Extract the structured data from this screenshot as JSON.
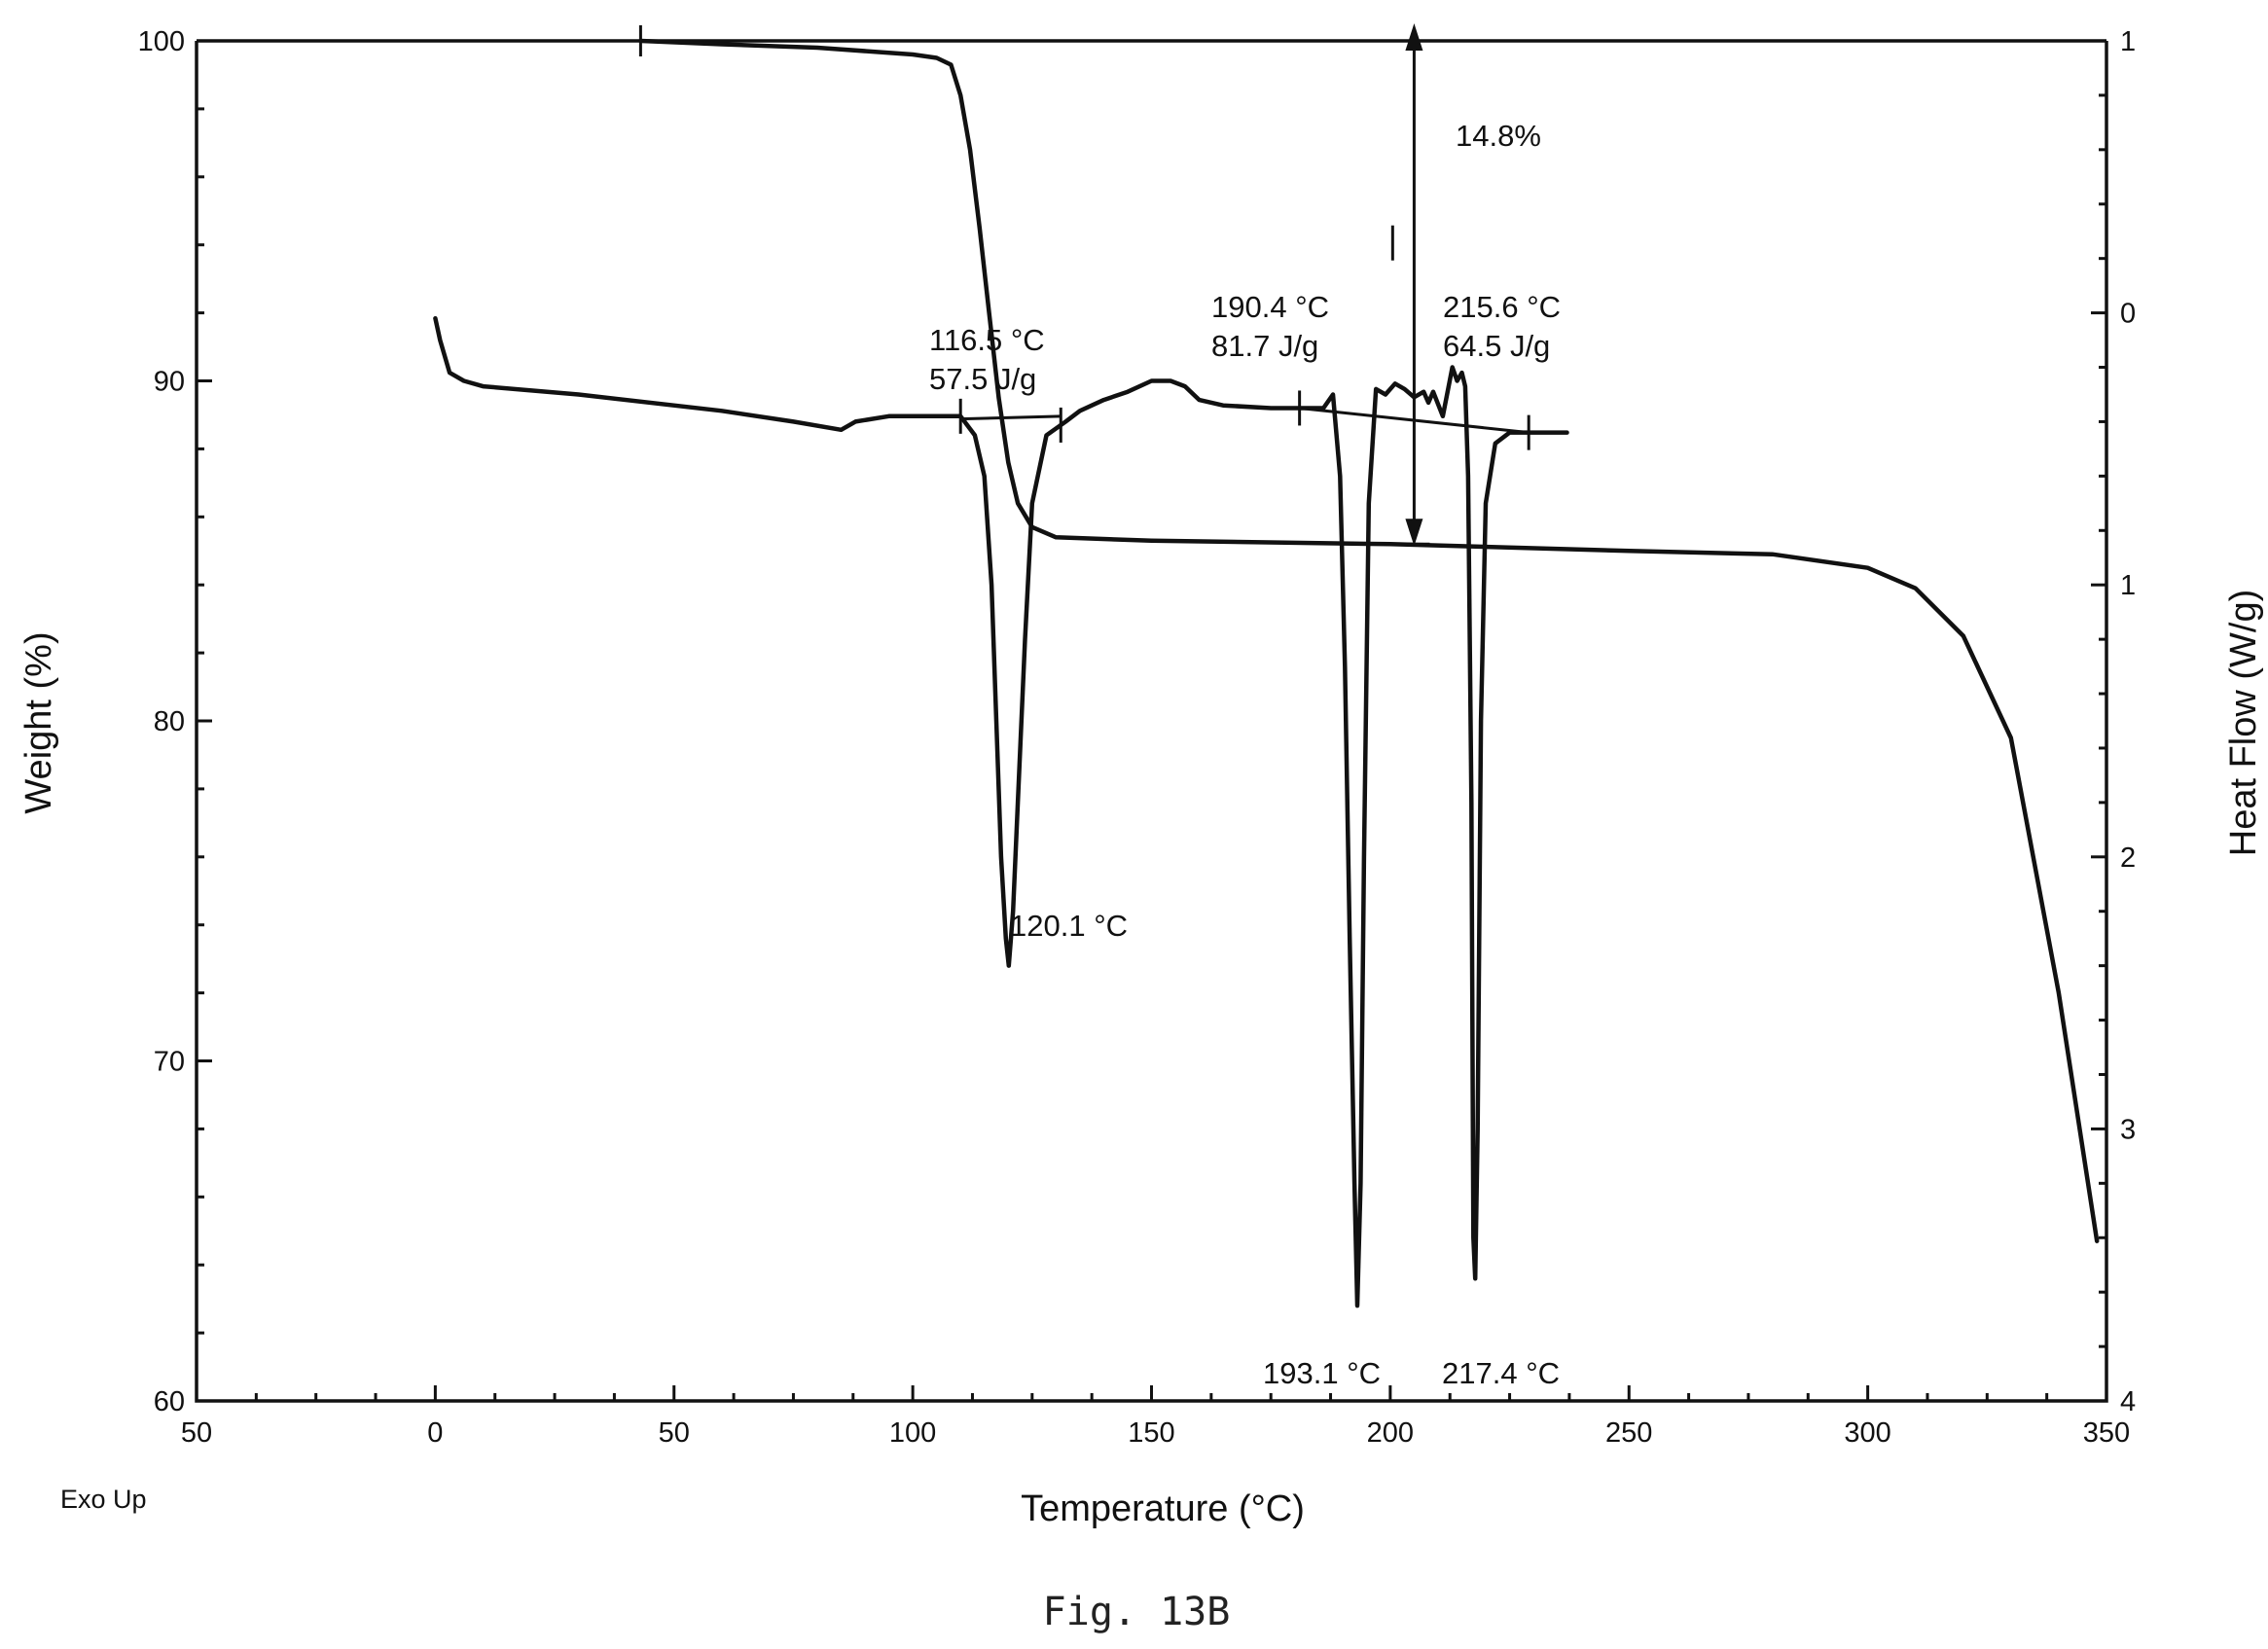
{
  "chart_data": {
    "type": "line",
    "x_axis": {
      "label": "Temperature (°C)",
      "range": [
        -50,
        350
      ],
      "ticks": [
        -50,
        0,
        50,
        100,
        150,
        200,
        250,
        300,
        350
      ],
      "tick_labels": [
        "50",
        "0",
        "50",
        "100",
        "150",
        "200",
        "250",
        "300",
        "350"
      ]
    },
    "y_axis_left": {
      "label": "Weight (%)",
      "range": [
        60,
        100
      ],
      "ticks": [
        60,
        70,
        80,
        90,
        100
      ],
      "tick_labels": [
        "60",
        "70",
        "80",
        "90",
        "100"
      ]
    },
    "y_axis_right": {
      "label": "Heat Flow (W/g)",
      "range": [
        4,
        -1
      ],
      "ticks": [
        -1,
        0,
        1,
        2,
        3,
        4
      ],
      "tick_labels": [
        "1",
        "0",
        "1",
        "2",
        "3",
        "4"
      ]
    },
    "corner_label": "Exo Up",
    "caption": "Fig. 13B",
    "series": [
      {
        "axis": "left",
        "x": [
          43,
          60,
          80,
          100,
          105,
          108,
          110,
          112,
          114,
          116,
          118,
          120,
          122,
          125,
          130,
          150,
          200,
          250,
          280,
          300,
          310,
          320,
          330,
          340,
          348
        ],
        "y": [
          100,
          99.9,
          99.8,
          99.6,
          99.5,
          99.3,
          98.4,
          96.8,
          94.5,
          92.0,
          89.5,
          87.6,
          86.4,
          85.7,
          85.4,
          85.3,
          85.2,
          85.0,
          84.9,
          84.5,
          83.9,
          82.5,
          79.5,
          72.0,
          64.7
        ]
      },
      {
        "axis": "right",
        "x": [
          0,
          1,
          3,
          6,
          10,
          30,
          60,
          75,
          85,
          88,
          95,
          105,
          110,
          113,
          115,
          116.5,
          117.5,
          118.5,
          119.5,
          120.1,
          121,
          122,
          123.5,
          125,
          128,
          132,
          135,
          140,
          145,
          150,
          154,
          157,
          160,
          165,
          175,
          182,
          186,
          188,
          189.5,
          190.5,
          191.5,
          192.5,
          193.1,
          193.8,
          194.5,
          195.5,
          197,
          199,
          201,
          203,
          205,
          207,
          208,
          209,
          211,
          213,
          214,
          215,
          215.7,
          216.3,
          217,
          217.4,
          217.8,
          218.3,
          219,
          220,
          222,
          225,
          230,
          237
        ],
        "y": [
          0.02,
          0.1,
          0.22,
          0.25,
          0.27,
          0.3,
          0.36,
          0.4,
          0.43,
          0.4,
          0.38,
          0.38,
          0.38,
          0.45,
          0.6,
          1.0,
          1.5,
          2.0,
          2.3,
          2.4,
          2.2,
          1.8,
          1.2,
          0.7,
          0.45,
          0.4,
          0.36,
          0.32,
          0.29,
          0.25,
          0.25,
          0.27,
          0.32,
          0.34,
          0.35,
          0.35,
          0.35,
          0.3,
          0.6,
          1.3,
          2.3,
          3.2,
          3.65,
          3.2,
          2.0,
          0.7,
          0.28,
          0.3,
          0.26,
          0.28,
          0.31,
          0.29,
          0.33,
          0.29,
          0.38,
          0.2,
          0.25,
          0.22,
          0.27,
          0.6,
          1.8,
          3.4,
          3.55,
          3.0,
          1.5,
          0.7,
          0.48,
          0.44,
          0.44,
          0.44
        ]
      }
    ],
    "annotations": [
      {
        "lines": [
          "116.5 °C",
          "57.5 J/g"
        ]
      },
      {
        "lines": [
          "120.1 °C"
        ]
      },
      {
        "lines": [
          "190.4 °C",
          "81.7 J/g"
        ]
      },
      {
        "lines": [
          "215.6 °C",
          "64.5 J/g"
        ]
      },
      {
        "lines": [
          "193.1 °C"
        ]
      },
      {
        "lines": [
          "217.4 °C"
        ]
      },
      {
        "lines": [
          "14.8%"
        ]
      }
    ],
    "weight_loss_step": {
      "x": 205,
      "from": 100,
      "to": 85.2,
      "label": "14.8%"
    }
  }
}
